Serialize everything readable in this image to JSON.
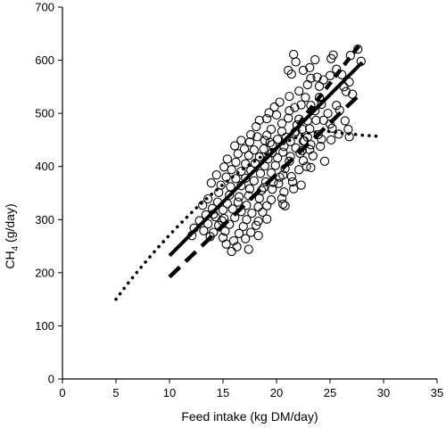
{
  "chart_data": {
    "type": "scatter",
    "xlabel": "Feed intake (kg DM/day)",
    "ylabel_main": "CH",
    "ylabel_sub": "4",
    "ylabel_unit": " (g/day)",
    "xlim": [
      0,
      35
    ],
    "ylim": [
      0,
      700
    ],
    "xticks": [
      0,
      5,
      10,
      15,
      20,
      25,
      30,
      35
    ],
    "yticks": [
      0,
      100,
      200,
      300,
      400,
      500,
      600,
      700
    ],
    "grid": false,
    "legend": "none",
    "colors": {
      "ink": "#000000"
    },
    "points": [
      [
        27.6,
        621
      ],
      [
        26.9,
        609
      ],
      [
        25.3,
        610
      ],
      [
        25.1,
        603
      ],
      [
        27.9,
        598
      ],
      [
        23.6,
        601
      ],
      [
        21.6,
        611
      ],
      [
        21.8,
        597
      ],
      [
        23.1,
        586
      ],
      [
        22.5,
        581
      ],
      [
        25.6,
        583
      ],
      [
        26.1,
        573
      ],
      [
        25.0,
        571
      ],
      [
        23.2,
        566
      ],
      [
        23.8,
        568
      ],
      [
        21.4,
        574
      ],
      [
        21.1,
        581
      ],
      [
        24.4,
        563
      ],
      [
        26.8,
        559
      ],
      [
        22.9,
        554
      ],
      [
        24.0,
        551
      ],
      [
        26.3,
        550
      ],
      [
        22.1,
        542
      ],
      [
        21.2,
        532
      ],
      [
        22.7,
        530
      ],
      [
        24.0,
        530
      ],
      [
        26.5,
        541
      ],
      [
        27.1,
        536
      ],
      [
        21.7,
        511
      ],
      [
        22.3,
        516
      ],
      [
        23.2,
        515
      ],
      [
        24.2,
        517
      ],
      [
        25.6,
        515
      ],
      [
        25.9,
        506
      ],
      [
        20.3,
        521
      ],
      [
        19.8,
        512
      ],
      [
        21.2,
        505
      ],
      [
        23.6,
        505
      ],
      [
        24.8,
        500
      ],
      [
        19.3,
        501
      ],
      [
        20.0,
        497
      ],
      [
        21.1,
        491
      ],
      [
        22.1,
        489
      ],
      [
        22.9,
        486
      ],
      [
        23.7,
        487
      ],
      [
        25.0,
        480
      ],
      [
        26.4,
        486
      ],
      [
        18.4,
        487
      ],
      [
        19.1,
        490
      ],
      [
        20.5,
        481
      ],
      [
        21.9,
        478
      ],
      [
        22.4,
        470
      ],
      [
        23.1,
        471
      ],
      [
        25.2,
        472
      ],
      [
        26.7,
        470
      ],
      [
        18.1,
        475
      ],
      [
        19.5,
        470
      ],
      [
        20.5,
        466
      ],
      [
        21.7,
        463
      ],
      [
        22.9,
        455
      ],
      [
        23.9,
        460
      ],
      [
        25.8,
        461
      ],
      [
        26.8,
        456
      ],
      [
        17.6,
        460
      ],
      [
        18.2,
        456
      ],
      [
        19.1,
        459
      ],
      [
        20.1,
        451
      ],
      [
        21.3,
        447
      ],
      [
        22.5,
        448
      ],
      [
        23.2,
        441
      ],
      [
        24.2,
        451
      ],
      [
        25.1,
        450
      ],
      [
        16.7,
        449
      ],
      [
        17.5,
        446
      ],
      [
        18.9,
        449
      ],
      [
        19.6,
        441
      ],
      [
        20.7,
        438
      ],
      [
        21.8,
        435
      ],
      [
        22.4,
        430
      ],
      [
        23.1,
        432
      ],
      [
        24.1,
        438
      ],
      [
        16.1,
        439
      ],
      [
        17.0,
        433
      ],
      [
        17.9,
        431
      ],
      [
        18.8,
        433
      ],
      [
        19.6,
        426
      ],
      [
        20.6,
        427
      ],
      [
        21.3,
        419
      ],
      [
        22.2,
        425
      ],
      [
        16.4,
        424
      ],
      [
        17.4,
        421
      ],
      [
        18.4,
        418
      ],
      [
        19.2,
        414
      ],
      [
        20.1,
        416
      ],
      [
        21.2,
        410
      ],
      [
        22.5,
        411
      ],
      [
        15.4,
        414
      ],
      [
        16.2,
        408
      ],
      [
        17.1,
        405
      ],
      [
        18.0,
        406
      ],
      [
        18.9,
        401
      ],
      [
        19.9,
        402
      ],
      [
        20.8,
        396
      ],
      [
        22.1,
        394
      ],
      [
        23.2,
        398
      ],
      [
        15.1,
        399
      ],
      [
        15.8,
        394
      ],
      [
        16.7,
        391
      ],
      [
        17.6,
        393
      ],
      [
        18.5,
        387
      ],
      [
        19.5,
        388
      ],
      [
        20.6,
        384
      ],
      [
        21.4,
        381
      ],
      [
        14.4,
        384
      ],
      [
        15.3,
        380
      ],
      [
        16.2,
        377
      ],
      [
        17.1,
        378
      ],
      [
        17.9,
        373
      ],
      [
        19.0,
        371
      ],
      [
        20.2,
        368
      ],
      [
        21.5,
        371
      ],
      [
        22.3,
        365
      ],
      [
        13.9,
        369
      ],
      [
        14.8,
        365
      ],
      [
        15.7,
        362
      ],
      [
        16.7,
        364
      ],
      [
        17.5,
        358
      ],
      [
        18.6,
        355
      ],
      [
        19.6,
        357
      ],
      [
        20.7,
        352
      ],
      [
        21.6,
        358
      ],
      [
        14.6,
        351
      ],
      [
        15.6,
        346
      ],
      [
        16.5,
        343
      ],
      [
        17.4,
        345
      ],
      [
        18.4,
        340
      ],
      [
        19.5,
        337
      ],
      [
        20.5,
        340
      ],
      [
        13.6,
        339
      ],
      [
        14.5,
        333
      ],
      [
        15.4,
        330
      ],
      [
        16.4,
        333
      ],
      [
        17.2,
        327
      ],
      [
        18.3,
        324
      ],
      [
        19.1,
        326
      ],
      [
        20.6,
        329
      ],
      [
        20.8,
        326
      ],
      [
        13.1,
        327
      ],
      [
        14.0,
        321
      ],
      [
        15.0,
        318
      ],
      [
        15.9,
        320
      ],
      [
        16.7,
        315
      ],
      [
        17.7,
        312
      ],
      [
        18.7,
        314
      ],
      [
        13.4,
        309
      ],
      [
        14.3,
        305
      ],
      [
        15.1,
        302
      ],
      [
        16.1,
        304
      ],
      [
        17.2,
        300
      ],
      [
        18.3,
        297
      ],
      [
        19.1,
        301
      ],
      [
        12.8,
        298
      ],
      [
        13.6,
        292
      ],
      [
        14.6,
        289
      ],
      [
        15.6,
        291
      ],
      [
        16.9,
        287
      ],
      [
        18.1,
        289
      ],
      [
        12.3,
        284
      ],
      [
        13.2,
        279
      ],
      [
        14.1,
        276
      ],
      [
        15.2,
        278
      ],
      [
        16.5,
        274
      ],
      [
        17.6,
        276
      ],
      [
        18.3,
        270
      ],
      [
        12.1,
        270
      ],
      [
        13.8,
        268
      ],
      [
        15.0,
        266
      ],
      [
        16.0,
        260
      ],
      [
        17.1,
        264
      ],
      [
        15.3,
        254
      ],
      [
        16.3,
        249
      ],
      [
        17.4,
        244
      ],
      [
        15.8,
        240
      ],
      [
        14.1,
        310
      ],
      [
        14.9,
        298
      ],
      [
        21.8,
        466
      ],
      [
        22.6,
        448
      ],
      [
        24.4,
        487
      ],
      [
        20.9,
        455
      ],
      [
        19.4,
        445
      ],
      [
        23.4,
        420
      ],
      [
        24.5,
        410
      ],
      [
        22.8,
        400
      ],
      [
        20.3,
        380
      ],
      [
        18.8,
        360
      ],
      [
        19.7,
        370
      ]
    ],
    "lines": [
      {
        "style": "solid-thick",
        "x": [
          10,
          28
        ],
        "y": [
          232,
          596
        ]
      },
      {
        "style": "long-dash",
        "x": [
          10,
          28
        ],
        "y": [
          192,
          540
        ]
      },
      {
        "style": "short-dash",
        "x": [
          22,
          28
        ],
        "y": [
          478,
          635
        ]
      },
      {
        "style": "dotted",
        "x": [
          5,
          6,
          7,
          8,
          9,
          10,
          11,
          12,
          13,
          14,
          15,
          16,
          17,
          18,
          19,
          20,
          21,
          22,
          23,
          24,
          25,
          26,
          27,
          28,
          29.5
        ],
        "y": [
          150,
          177,
          202,
          226,
          249,
          271,
          292,
          312,
          331,
          349,
          366,
          382,
          397,
          411,
          424,
          436,
          447,
          456,
          463,
          466,
          466,
          463,
          461,
          459,
          457
        ]
      }
    ]
  }
}
